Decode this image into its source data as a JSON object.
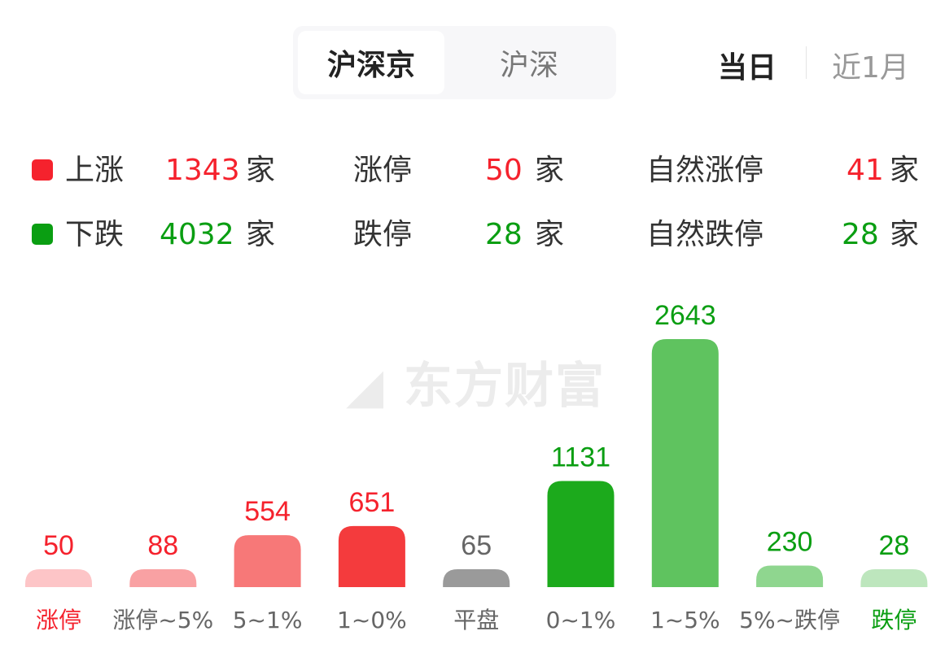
{
  "tabs": {
    "market": [
      {
        "label": "沪深京",
        "active": true
      },
      {
        "label": "沪深",
        "active": false
      }
    ],
    "period": [
      {
        "label": "当日",
        "active": true
      },
      {
        "label": "近1月",
        "active": false
      }
    ]
  },
  "summary": {
    "unit": "家",
    "up": {
      "label": "上涨",
      "count": "1343",
      "color": "#f5222d"
    },
    "down": {
      "label": "下跌",
      "count": "4032",
      "color": "#0a9e12"
    },
    "limit_up": {
      "label": "涨停",
      "count": "50"
    },
    "limit_down": {
      "label": "跌停",
      "count": "28"
    },
    "natural_limit_up": {
      "label": "自然涨停",
      "count": "41"
    },
    "natural_limit_down": {
      "label": "自然跌停",
      "count": "28"
    }
  },
  "watermark": "东方财富",
  "chart_data": {
    "type": "bar",
    "categories": [
      "涨停",
      "涨停~5%",
      "5~1%",
      "1~0%",
      "平盘",
      "0~1%",
      "1~5%",
      "5%~跌停",
      "跌停"
    ],
    "values": [
      50,
      88,
      554,
      651,
      65,
      1131,
      2643,
      230,
      28
    ],
    "bar_colors": [
      "#fdc5c7",
      "#f9a1a3",
      "#f77878",
      "#f43b3d",
      "#9a9a9a",
      "#1caa1c",
      "#5fc35f",
      "#8fd68f",
      "#bde6bd"
    ],
    "label_colors": [
      "#f5222d",
      "#f5222d",
      "#f5222d",
      "#f5222d",
      "#666666",
      "#0a9e12",
      "#0a9e12",
      "#0a9e12",
      "#0a9e12"
    ],
    "category_colors": [
      "#f5222d",
      "#666666",
      "#666666",
      "#666666",
      "#666666",
      "#666666",
      "#666666",
      "#666666",
      "#0a9e12"
    ]
  }
}
